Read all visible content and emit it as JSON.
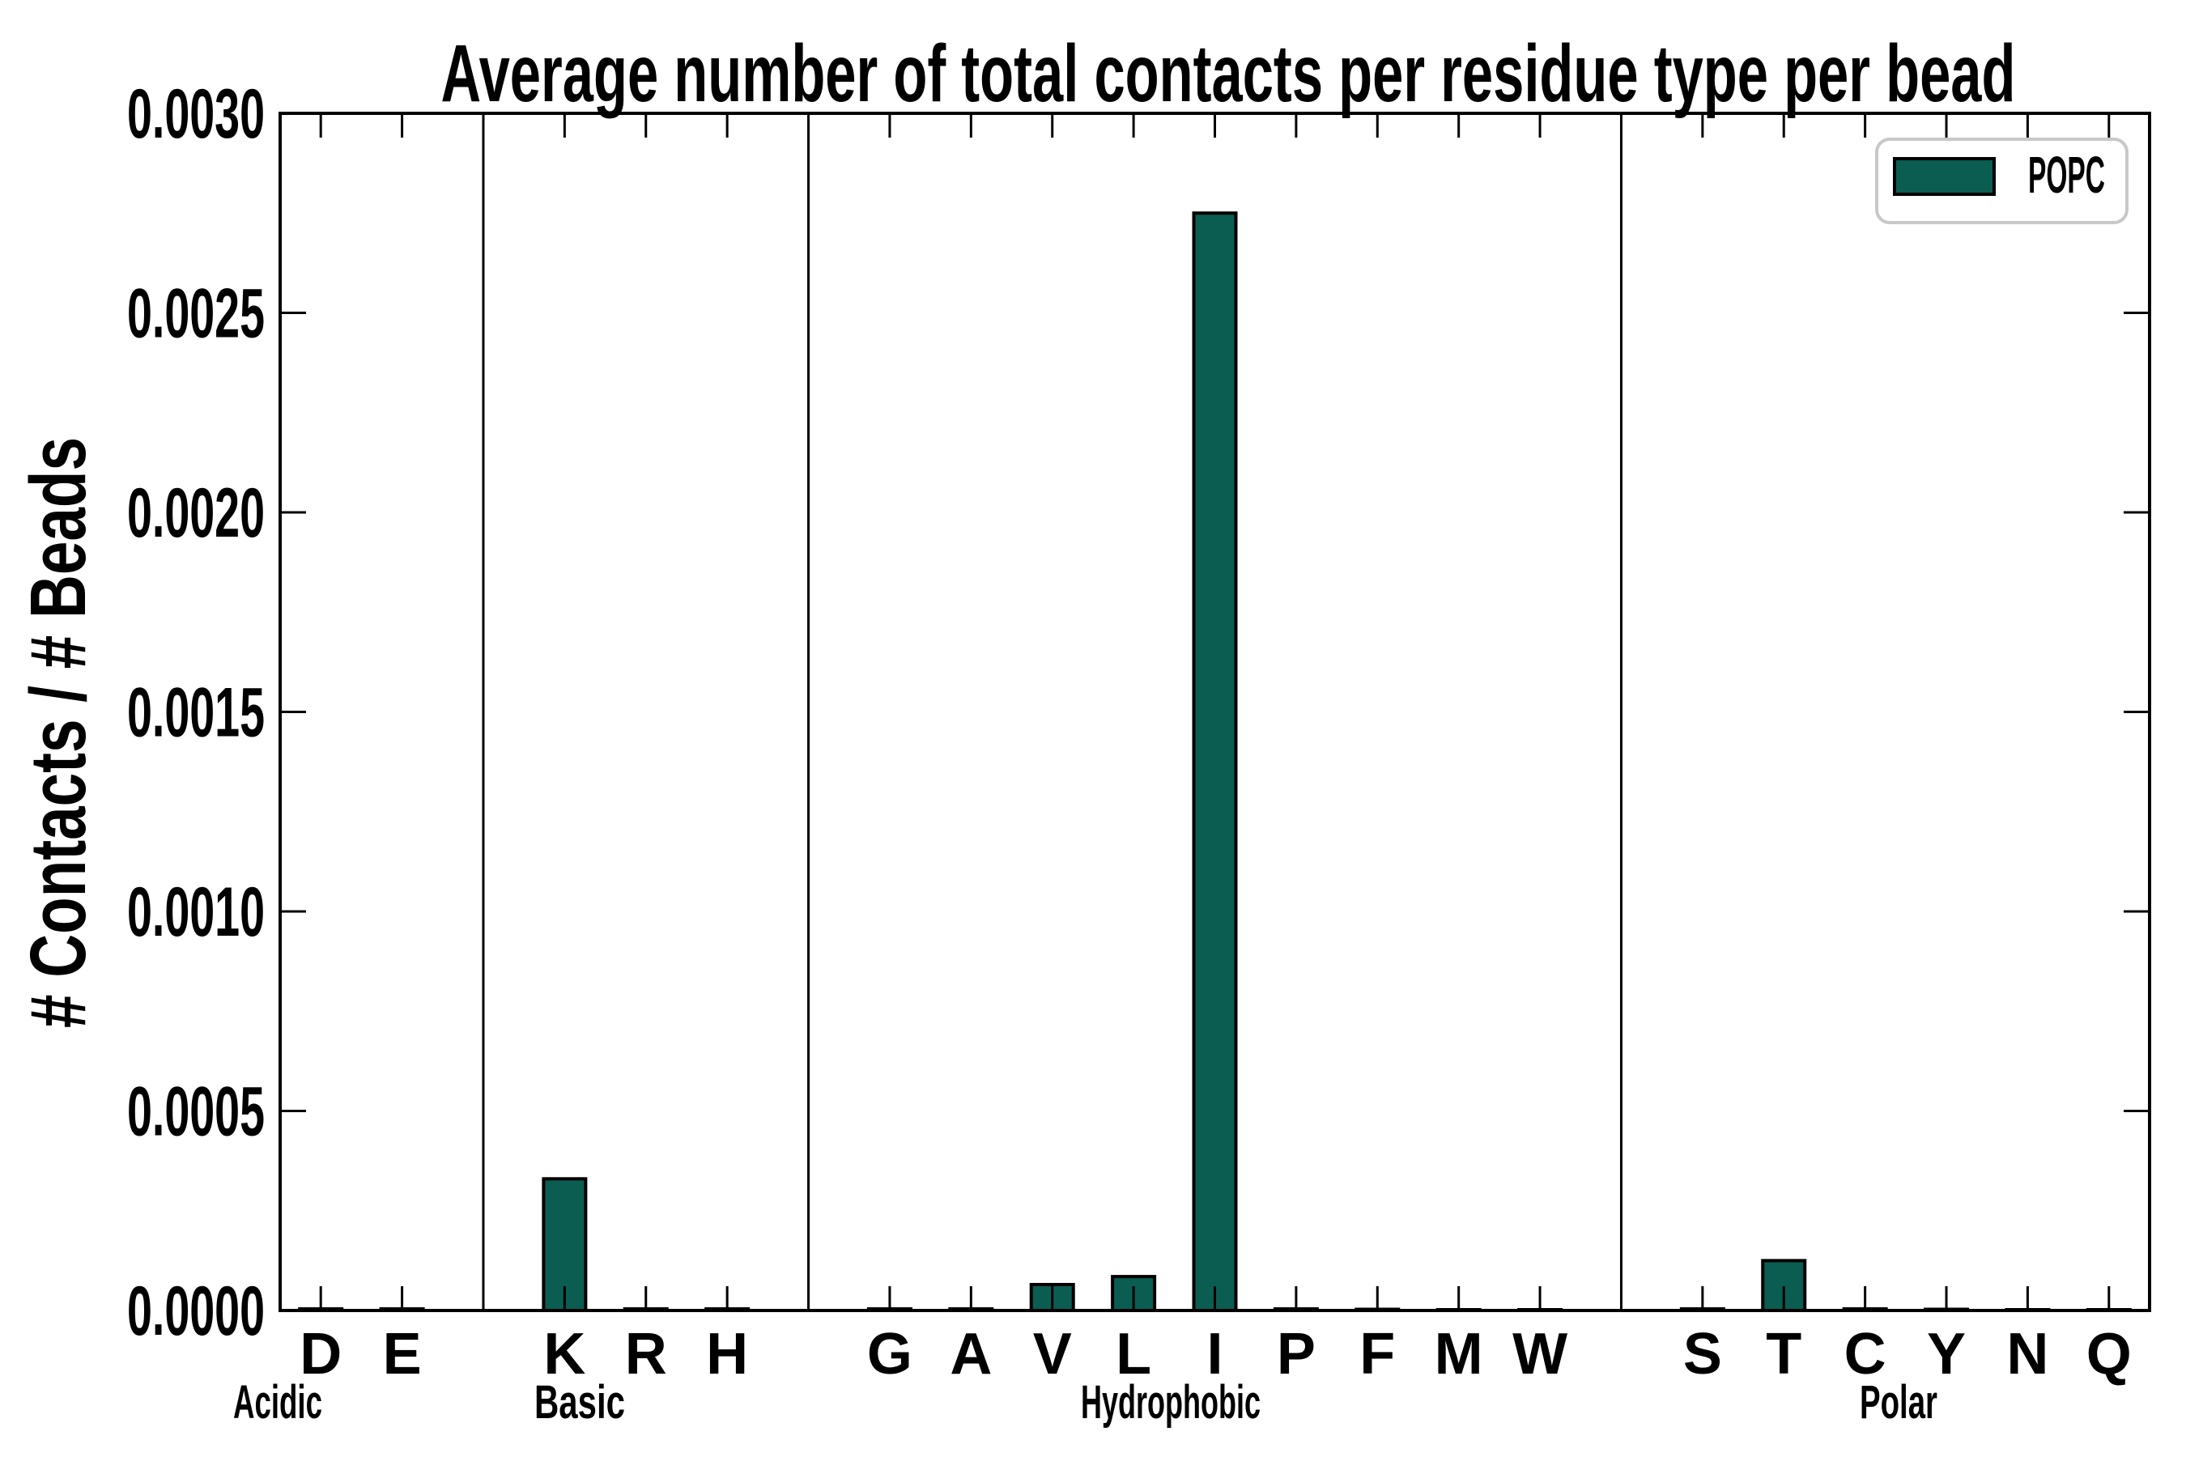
{
  "chart_data": {
    "type": "bar",
    "title": "Average number of total contacts per residue type per bead",
    "ylabel": "# Contacts / # Beads",
    "xlabel": "",
    "ylim": [
      0.0,
      0.003
    ],
    "ytick_step": 0.0005,
    "ytick_labels": [
      "0.0000",
      "0.0005",
      "0.0010",
      "0.0015",
      "0.0020",
      "0.0025",
      "0.0030"
    ],
    "grid": "off",
    "bar_color": "#0B5D51",
    "bar_edge_color": "#000000",
    "legend": {
      "position": "upper right",
      "entries": [
        {
          "label": "POPC",
          "color": "#0B5D51"
        }
      ]
    },
    "series_name": "POPC",
    "groups": [
      {
        "label": "Acidic",
        "categories": [
          "D",
          "E"
        ],
        "values": [
          4e-06,
          4e-06
        ]
      },
      {
        "label": "Basic",
        "categories": [
          "K",
          "R",
          "H"
        ],
        "values": [
          0.00033,
          4e-06,
          4e-06
        ]
      },
      {
        "label": "Hydrophobic",
        "categories": [
          "G",
          "A",
          "V",
          "L",
          "I",
          "P",
          "F",
          "M",
          "W"
        ],
        "values": [
          4e-06,
          4e-06,
          6.5e-05,
          8.5e-05,
          0.00275,
          4e-06,
          3e-06,
          2e-06,
          2e-06
        ]
      },
      {
        "label": "Polar",
        "categories": [
          "S",
          "T",
          "C",
          "Y",
          "N",
          "Q"
        ],
        "values": [
          4e-06,
          0.000125,
          4e-06,
          3e-06,
          2e-06,
          2e-06
        ]
      }
    ]
  }
}
